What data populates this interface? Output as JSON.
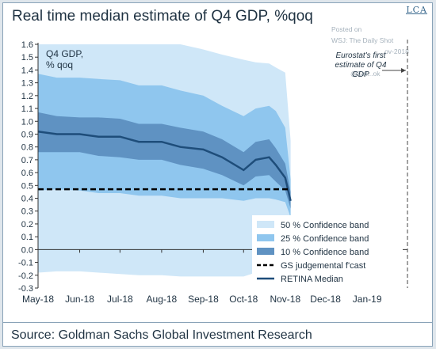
{
  "title": "Real time median estimate of Q4 GDP, %qoq",
  "source": "Source: Goldman Sachs Global Investment Research",
  "logo_text": "LCA",
  "watermark": [
    "Posted on",
    "WSJ: The Daily Shot",
    "...ov-2018",
    "@Sot...ok"
  ],
  "colors": {
    "band50": "#cfe7f8",
    "band25": "#8fc6ee",
    "band10": "#5f92c2",
    "median": "#1e4d7a",
    "judgemental": "#000000",
    "text": "#1f3242"
  },
  "chart_data": {
    "type": "area",
    "title": "Real time median estimate of Q4 GDP, %qoq",
    "ylabel_inside": [
      "Q4 GDP,",
      "% qoq"
    ],
    "xlabel": "",
    "ylim": [
      -0.3,
      1.6
    ],
    "yticks": [
      "-0.3",
      "-0.2",
      "-0.1",
      "0.0",
      "0.1",
      "0.2",
      "0.3",
      "0.4",
      "0.5",
      "0.6",
      "0.7",
      "0.8",
      "0.9",
      "1.0",
      "1.1",
      "1.2",
      "1.3",
      "1.4",
      "1.5",
      "1.6"
    ],
    "xlim": [
      "2018-05-01",
      "2019-01-31"
    ],
    "xticks": [
      {
        "label": "May-18",
        "date": "2018-05-01"
      },
      {
        "label": "Jun-18",
        "date": "2018-06-01"
      },
      {
        "label": "Jul-18",
        "date": "2018-07-01"
      },
      {
        "label": "Aug-18",
        "date": "2018-08-01"
      },
      {
        "label": "Sep-18",
        "date": "2018-09-01"
      },
      {
        "label": "Oct-18",
        "date": "2018-10-01"
      },
      {
        "label": "Nov-18",
        "date": "2018-11-01"
      },
      {
        "label": "Dec-18",
        "date": "2018-12-01"
      },
      {
        "label": "Jan-19",
        "date": "2019-01-01"
      }
    ],
    "grid": false,
    "annotation": {
      "text": [
        "Eurostat's first",
        "estimate of Q4",
        "GDP"
      ],
      "date": "2019-01-31"
    },
    "legend": [
      "50 % Confidence band",
      "25 % Confidence band",
      "10 % Confidence band",
      "GS judgemental f'cast",
      "RETINA Median"
    ],
    "legend_position": "bottom-right",
    "x": [
      "2018-05-01",
      "2018-05-15",
      "2018-06-01",
      "2018-06-15",
      "2018-07-01",
      "2018-07-15",
      "2018-08-01",
      "2018-08-15",
      "2018-09-01",
      "2018-09-15",
      "2018-10-01",
      "2018-10-10",
      "2018-10-20",
      "2018-10-25",
      "2018-11-01",
      "2018-11-05"
    ],
    "series": [
      {
        "name": "RETINA Median",
        "values": [
          0.92,
          0.9,
          0.9,
          0.88,
          0.88,
          0.84,
          0.84,
          0.8,
          0.78,
          0.72,
          0.62,
          0.7,
          0.72,
          0.66,
          0.56,
          0.38
        ]
      },
      {
        "name": "10 % Confidence band",
        "lower": [
          0.76,
          0.76,
          0.76,
          0.73,
          0.72,
          0.7,
          0.7,
          0.66,
          0.63,
          0.58,
          0.5,
          0.57,
          0.58,
          0.53,
          0.46,
          0.32
        ],
        "upper": [
          1.07,
          1.04,
          1.03,
          1.03,
          1.02,
          0.98,
          0.98,
          0.95,
          0.92,
          0.86,
          0.76,
          0.84,
          0.86,
          0.79,
          0.67,
          0.45
        ]
      },
      {
        "name": "25 % Confidence band",
        "lower": [
          0.46,
          0.47,
          0.46,
          0.44,
          0.44,
          0.42,
          0.42,
          0.4,
          0.4,
          0.4,
          0.38,
          0.4,
          0.4,
          0.39,
          0.37,
          0.25
        ],
        "upper": [
          1.37,
          1.34,
          1.34,
          1.33,
          1.32,
          1.28,
          1.28,
          1.24,
          1.2,
          1.12,
          1.04,
          1.1,
          1.12,
          1.08,
          0.95,
          0.55
        ]
      },
      {
        "name": "50 % Confidence band",
        "lower": [
          -0.18,
          -0.17,
          -0.17,
          -0.18,
          -0.19,
          -0.2,
          -0.2,
          -0.21,
          -0.21,
          -0.21,
          -0.21,
          -0.18,
          -0.16,
          -0.14,
          -0.1,
          0.25
        ],
        "upper": [
          1.6,
          1.6,
          1.6,
          1.6,
          1.6,
          1.6,
          1.6,
          1.6,
          1.56,
          1.52,
          1.48,
          1.46,
          1.45,
          1.42,
          1.38,
          0.85
        ]
      },
      {
        "name": "GS judgemental f'cast",
        "values": [
          0.47,
          0.47
        ],
        "x": [
          "2018-05-01",
          "2018-11-05"
        ]
      }
    ]
  }
}
